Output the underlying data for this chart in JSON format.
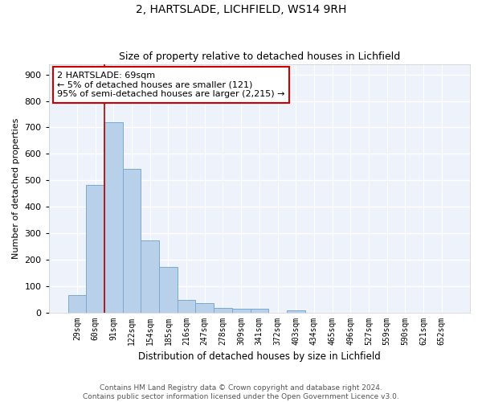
{
  "title1": "2, HARTSLADE, LICHFIELD, WS14 9RH",
  "title2": "Size of property relative to detached houses in Lichfield",
  "xlabel": "Distribution of detached houses by size in Lichfield",
  "ylabel": "Number of detached properties",
  "categories": [
    "29sqm",
    "60sqm",
    "91sqm",
    "122sqm",
    "154sqm",
    "185sqm",
    "216sqm",
    "247sqm",
    "278sqm",
    "309sqm",
    "341sqm",
    "372sqm",
    "403sqm",
    "434sqm",
    "465sqm",
    "496sqm",
    "527sqm",
    "559sqm",
    "590sqm",
    "621sqm",
    "652sqm"
  ],
  "values": [
    65,
    483,
    720,
    542,
    272,
    173,
    48,
    35,
    16,
    13,
    13,
    0,
    9,
    0,
    0,
    0,
    0,
    0,
    0,
    0,
    0
  ],
  "bar_color": "#b8d0ea",
  "bar_edge_color": "#7aaad0",
  "vline_color": "#aa0000",
  "annotation_text": "2 HARTSLADE: 69sqm\n← 5% of detached houses are smaller (121)\n95% of semi-detached houses are larger (2,215) →",
  "annotation_box_color": "#ffffff",
  "annotation_box_edge": "#cc0000",
  "background_color": "#eef2fa",
  "grid_color": "#ffffff",
  "ylim": [
    0,
    940
  ],
  "yticks": [
    0,
    100,
    200,
    300,
    400,
    500,
    600,
    700,
    800,
    900
  ],
  "footer1": "Contains HM Land Registry data © Crown copyright and database right 2024.",
  "footer2": "Contains public sector information licensed under the Open Government Licence v3.0."
}
